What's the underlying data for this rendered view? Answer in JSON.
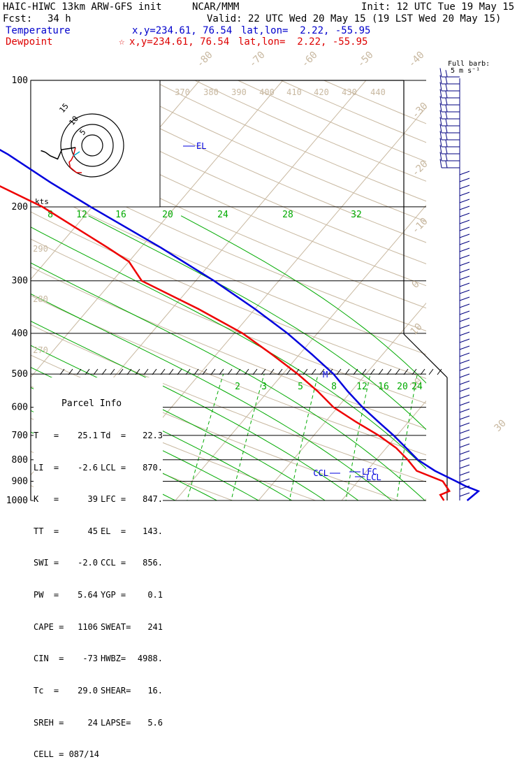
{
  "header": {
    "model": "HAIC-HIWC 13km ARW-GFS init",
    "org": "NCAR/MMM",
    "init": "Init: 12 UTC Tue 19 May 15",
    "fcst_label": "Fcst:",
    "fcst_value": "34 h",
    "valid": "Valid: 22 UTC Wed 20 May 15 (19 LST Wed 20 May 15)"
  },
  "legend": {
    "temperature": {
      "label": "Temperature",
      "xy": "x,y=234.61, 76.54",
      "latlon": "lat,lon=  2.22, -55.95",
      "color": "#0000cc"
    },
    "dewpoint": {
      "label": "Dewpoint",
      "marker": "☆",
      "xy": "x,y=234.61, 76.54",
      "latlon": "lat,lon=  2.22, -55.95",
      "color": "#dd0000"
    }
  },
  "barb_header": {
    "line1": "Full barb:",
    "line2": "5 m s⁻¹"
  },
  "hodograph": {
    "units": "kts",
    "rings": [
      "5",
      "10",
      "15"
    ]
  },
  "chart_data": {
    "type": "skew-T",
    "y_axis": {
      "scale": "log",
      "ticks": [
        "100",
        "200",
        "300",
        "400",
        "500",
        "600",
        "700",
        "800",
        "900",
        "1000"
      ]
    },
    "isotherm_labels": [
      "-80",
      "-70",
      "-60",
      "-50",
      "-40",
      "-30",
      "-20",
      "-10",
      "0",
      "10",
      "20",
      "30",
      "40"
    ],
    "theta_labels": [
      "370",
      "380",
      "390",
      "400",
      "410",
      "420",
      "430",
      "440"
    ],
    "theta_labels_low": [
      "290",
      "280",
      "270"
    ],
    "mixing_ratio_labels_upper": [
      "8",
      "12",
      "16",
      "20",
      "24",
      "28",
      "32"
    ],
    "mixing_ratio_labels_lower": [
      "2",
      "3",
      "5",
      "8",
      "12",
      "16",
      "20",
      "24"
    ],
    "temperature_profile": [
      [
        1000,
        25.1
      ],
      [
        950,
        25.5
      ],
      [
        925,
        23.5
      ],
      [
        900,
        21.8
      ],
      [
        850,
        18.2
      ],
      [
        800,
        15.0
      ],
      [
        750,
        12.4
      ],
      [
        700,
        9.6
      ],
      [
        650,
        6.4
      ],
      [
        600,
        3.0
      ],
      [
        550,
        -0.4
      ],
      [
        500,
        -3.9
      ],
      [
        450,
        -8.4
      ],
      [
        400,
        -13.6
      ],
      [
        350,
        -20.0
      ],
      [
        300,
        -27.8
      ],
      [
        250,
        -37.6
      ],
      [
        200,
        -50.2
      ],
      [
        175,
        -57.5
      ],
      [
        150,
        -65.5
      ],
      [
        140,
        -69.5
      ],
      [
        130,
        -72.5
      ],
      [
        125,
        -74.0
      ],
      [
        110,
        -77.5
      ],
      [
        100,
        -77.8
      ]
    ],
    "dewpoint_profile": [
      [
        1000,
        22.3
      ],
      [
        970,
        21.3
      ],
      [
        950,
        22.0
      ],
      [
        900,
        20.2
      ],
      [
        850,
        16.0
      ],
      [
        800,
        13.8
      ],
      [
        750,
        11.2
      ],
      [
        700,
        7.8
      ],
      [
        650,
        3.7
      ],
      [
        600,
        -0.5
      ],
      [
        550,
        -4.0
      ],
      [
        500,
        -8.2
      ],
      [
        450,
        -13.2
      ],
      [
        400,
        -19.0
      ],
      [
        350,
        -26.8
      ],
      [
        300,
        -36.5
      ],
      [
        270,
        -40.0
      ],
      [
        250,
        -44.0
      ],
      [
        200,
        -56.0
      ],
      [
        175,
        -64.5
      ],
      [
        150,
        -72.5
      ],
      [
        140,
        -76.0
      ],
      [
        130,
        -79.5
      ],
      [
        120,
        -80.0
      ],
      [
        110,
        -80.5
      ],
      [
        100,
        -79.5
      ]
    ],
    "markers": [
      {
        "label": "EL",
        "p": 143
      },
      {
        "label": "LFC",
        "p": 847
      },
      {
        "label": "LCL",
        "p": 870
      },
      {
        "label": "CCL",
        "p": 856
      },
      {
        "label": "M",
        "p": 500
      }
    ],
    "hodograph_trace": [
      {
        "color": "#dd0000",
        "points": [
          [
            -16,
            -2
          ],
          [
            -18,
            -10
          ],
          [
            -20,
            -14
          ],
          [
            -22,
            -16
          ],
          [
            -21,
            -21
          ],
          [
            -15,
            -26
          ],
          [
            -10,
            -26
          ]
        ]
      },
      {
        "color": "#00aacc",
        "points": [
          [
            -18,
            -10
          ],
          [
            -15,
            -8
          ],
          [
            -12,
            -6
          ]
        ]
      },
      {
        "color": "#000000",
        "points": [
          [
            -16,
            -2
          ],
          [
            -22,
            -3
          ],
          [
            -29,
            -4
          ],
          [
            -33,
            -13
          ],
          [
            -40,
            -10
          ],
          [
            -44,
            -7
          ],
          [
            -46,
            -6
          ],
          [
            -49,
            -5
          ]
        ]
      }
    ]
  },
  "parcel_info": {
    "title": "Parcel Info",
    "rows": [
      {
        "k1": "T   =",
        "v1": "25.1",
        "k2": "Td  =",
        "v2": "22.3"
      },
      {
        "k1": "LI  =",
        "v1": "-2.6",
        "k2": "LCL =",
        "v2": "870."
      },
      {
        "k1": "K   =",
        "v1": "39",
        "k2": "LFC =",
        "v2": "847."
      },
      {
        "k1": "TT  =",
        "v1": "45",
        "k2": "EL  =",
        "v2": "143."
      },
      {
        "k1": "SWI =",
        "v1": "-2.0",
        "k2": "CCL =",
        "v2": "856."
      },
      {
        "k1": "PW  =",
        "v1": "5.64",
        "k2": "YGP =",
        "v2": "0.1"
      },
      {
        "k1": "CAPE =",
        "v1": "1106",
        "k2": "SWEAT=",
        "v2": "241"
      },
      {
        "k1": "CIN  =",
        "v1": "-73",
        "k2": "HWBZ=",
        "v2": "4988."
      },
      {
        "k1": "Tc  =",
        "v1": "29.0",
        "k2": "SHEAR=",
        "v2": "16."
      },
      {
        "k1": "SREH =",
        "v1": "24",
        "k2": "LAPSE=",
        "v2": "5.6"
      }
    ],
    "cell": "CELL = 087/14"
  },
  "colors": {
    "isotherm": "#c8b8a0",
    "mixing_ratio": "#00aa00",
    "temperature": "#0000dd",
    "dewpoint": "#ee0000",
    "barbs": "#000080"
  }
}
